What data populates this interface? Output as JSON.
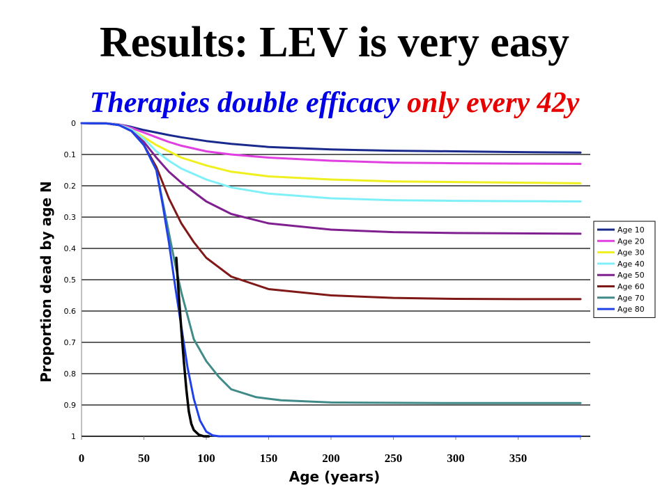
{
  "slide": {
    "title": "Results: LEV is very easy",
    "subtitle_part1": "Therapies double efficacy",
    "subtitle_part2": "only every 42y"
  },
  "chart_data": {
    "type": "line",
    "xlabel": "Age (years)",
    "ylabel": "Proportion dead by age N",
    "xlim": [
      0,
      400
    ],
    "ylim": [
      0,
      1
    ],
    "y_inverted": true,
    "grid": "horizontal",
    "legend_position": "right",
    "x_ticks": [
      "0",
      "50",
      "100",
      "150",
      "200",
      "250",
      "300",
      "350"
    ],
    "y_ticks": [
      "0",
      "0.1",
      "0.2",
      "0.3",
      "0.4",
      "0.5",
      "0.6",
      "0.7",
      "0.8",
      "0.9",
      "1"
    ],
    "series": [
      {
        "name": "Age 10",
        "color": "#1a2a8c",
        "x": [
          0,
          20,
          30,
          40,
          50,
          60,
          70,
          80,
          100,
          120,
          150,
          200,
          250,
          300,
          340,
          400
        ],
        "y": [
          0,
          0.001,
          0.004,
          0.012,
          0.022,
          0.03,
          0.038,
          0.045,
          0.057,
          0.066,
          0.076,
          0.084,
          0.088,
          0.09,
          0.092,
          0.094
        ]
      },
      {
        "name": "Age 20",
        "color": "#e040e0",
        "x": [
          0,
          20,
          30,
          40,
          50,
          60,
          70,
          80,
          100,
          120,
          150,
          200,
          250,
          300,
          350,
          400
        ],
        "y": [
          0,
          0.001,
          0.004,
          0.015,
          0.03,
          0.045,
          0.06,
          0.072,
          0.09,
          0.1,
          0.11,
          0.12,
          0.126,
          0.128,
          0.129,
          0.13
        ]
      },
      {
        "name": "Age 30",
        "color": "#f0f020",
        "x": [
          0,
          20,
          30,
          40,
          50,
          60,
          70,
          80,
          100,
          120,
          150,
          200,
          250,
          300,
          350,
          400
        ],
        "y": [
          0,
          0.001,
          0.005,
          0.02,
          0.045,
          0.07,
          0.09,
          0.11,
          0.135,
          0.155,
          0.17,
          0.18,
          0.186,
          0.188,
          0.19,
          0.192
        ]
      },
      {
        "name": "Age 40",
        "color": "#80f0f8",
        "x": [
          0,
          20,
          30,
          40,
          50,
          60,
          70,
          80,
          100,
          120,
          150,
          200,
          250,
          300,
          350,
          400
        ],
        "y": [
          0,
          0.001,
          0.005,
          0.02,
          0.05,
          0.09,
          0.12,
          0.145,
          0.18,
          0.205,
          0.225,
          0.24,
          0.246,
          0.248,
          0.249,
          0.25
        ]
      },
      {
        "name": "Age 50",
        "color": "#802090",
        "x": [
          0,
          20,
          30,
          40,
          50,
          60,
          70,
          80,
          90,
          100,
          120,
          150,
          200,
          250,
          300,
          350,
          400
        ],
        "y": [
          0,
          0.001,
          0.006,
          0.025,
          0.06,
          0.11,
          0.155,
          0.19,
          0.22,
          0.25,
          0.29,
          0.32,
          0.34,
          0.348,
          0.351,
          0.352,
          0.353
        ]
      },
      {
        "name": "Age 60",
        "color": "#801818",
        "x": [
          0,
          20,
          30,
          40,
          50,
          60,
          65,
          70,
          80,
          90,
          100,
          120,
          150,
          200,
          250,
          300,
          350,
          400
        ],
        "y": [
          0,
          0.001,
          0.006,
          0.025,
          0.07,
          0.14,
          0.19,
          0.24,
          0.32,
          0.38,
          0.43,
          0.49,
          0.53,
          0.55,
          0.558,
          0.561,
          0.562,
          0.562
        ]
      },
      {
        "name": "Age 70",
        "color": "#408a88",
        "x": [
          0,
          20,
          30,
          40,
          50,
          60,
          65,
          70,
          75,
          80,
          90,
          100,
          110,
          120,
          140,
          160,
          200,
          250,
          300,
          400
        ],
        "y": [
          0,
          0.001,
          0.006,
          0.025,
          0.07,
          0.15,
          0.25,
          0.35,
          0.45,
          0.54,
          0.69,
          0.76,
          0.81,
          0.85,
          0.875,
          0.885,
          0.892,
          0.893,
          0.894,
          0.894
        ]
      },
      {
        "name": "Age 80",
        "color": "#2040e8",
        "x": [
          0,
          20,
          30,
          40,
          50,
          60,
          65,
          70,
          75,
          80,
          85,
          90,
          95,
          100,
          105,
          110,
          130,
          200,
          400
        ],
        "y": [
          0,
          0.001,
          0.006,
          0.025,
          0.07,
          0.15,
          0.26,
          0.38,
          0.52,
          0.65,
          0.78,
          0.88,
          0.95,
          0.985,
          0.997,
          1,
          1,
          1,
          1
        ]
      },
      {
        "name": "",
        "color": "#000000",
        "x": [
          76,
          78,
          80,
          82,
          84,
          86,
          88,
          90,
          94,
          98,
          102
        ],
        "y": [
          0.43,
          0.55,
          0.66,
          0.76,
          0.85,
          0.92,
          0.96,
          0.98,
          0.995,
          1,
          1
        ]
      }
    ]
  }
}
